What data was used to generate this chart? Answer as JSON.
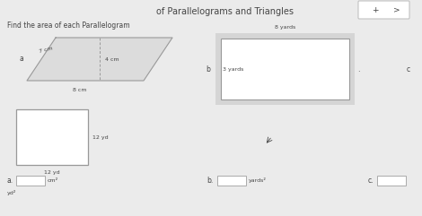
{
  "title": "of Parallelograms and Triangles",
  "subtitle": "Find the area of each Parallelogram",
  "bg_color": "#ebebeb",
  "font_color": "#444444",
  "line_color": "#999999",
  "white": "#ffffff",
  "nav_plus": "+",
  "nav_arrow": ">",
  "para_side": "7 cm",
  "para_height": "4 cm",
  "para_base": "8 cm",
  "rect_top": "8 yards",
  "rect_side": "3 yards",
  "sq_side": "12 yd",
  "sq_base": "12 yd",
  "ans_a_unit": "cm²",
  "ans_b_unit": "yards²",
  "label_a": "a",
  "label_b": "b",
  "label_c": "c",
  "label_a_dot": "a.",
  "label_b_dot": "b.",
  "label_c_dot": "c.",
  "label_yd2": "yd²"
}
